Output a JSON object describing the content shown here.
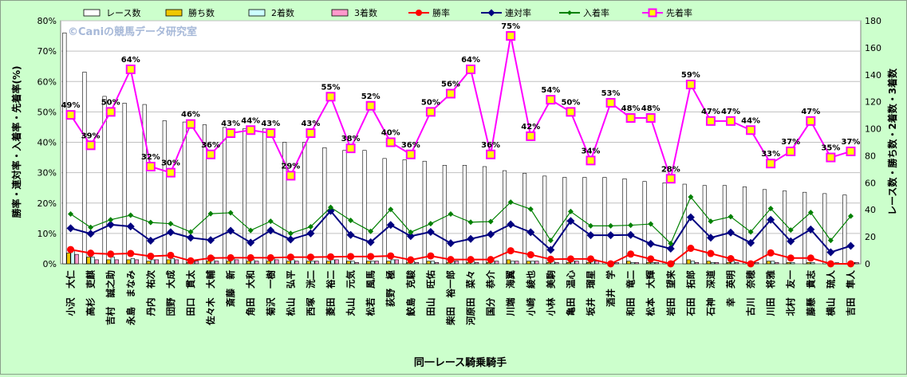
{
  "chart_data": {
    "type": "bar+line",
    "watermark": "©Caniの競馬データ研究室",
    "xlabel": "同一レース騎乗騎手",
    "ylabel_left": "勝率・連対率・入着率・先着率(%)",
    "ylabel_right": "レース数・勝ち数・2着数・3着数",
    "ylim_left": [
      0,
      80
    ],
    "ylim_right": [
      0,
      180
    ],
    "left_ticks": [
      "0%",
      "10%",
      "20%",
      "30%",
      "40%",
      "50%",
      "60%",
      "70%",
      "80%"
    ],
    "right_ticks": [
      "0",
      "20",
      "40",
      "60",
      "80",
      "100",
      "120",
      "140",
      "160",
      "180"
    ],
    "legend": [
      "レース数",
      "勝ち数",
      "2着数",
      "3着数",
      "勝率",
      "連対率",
      "入着率",
      "先着率"
    ],
    "categories": [
      "小沢 大仁",
      "高杉 吏麒",
      "吉村 誠之助",
      "永島 まなみ",
      "丹内 祐次",
      "団野 大成",
      "田口 貫太",
      "佐々木 大輔",
      "斎藤 新",
      "角田 大和",
      "菊沢 一樹",
      "松山 弘平",
      "西塚 洸二",
      "菱田 裕二",
      "丸山 元気",
      "松若 風馬",
      "荻野 極",
      "鮫島 克駿",
      "田山 旺佑",
      "柴田 裕一郎",
      "河原田 菜々",
      "国分 恭介",
      "川端 海翼",
      "小崎 綾也",
      "小林 美駒",
      "亀田 温心",
      "坂井 瑠星",
      "酒井 学",
      "和田 竜二",
      "松本 大輝",
      "岩田 望来",
      "石田 拓郎",
      "石神 深道",
      "幸 英明",
      "古川 奈穂",
      "川田 将雅",
      "北村 友一",
      "藤懸 貴志",
      "横山 琉人",
      "吉田 隼人"
    ],
    "series": [
      {
        "name": "レース数",
        "axis": "right",
        "kind": "bar",
        "values": [
          171,
          142,
          124,
          119,
          118,
          106,
          105,
          103,
          101,
          100,
          100,
          90,
          90,
          86,
          84,
          84,
          78,
          77,
          76,
          73,
          73,
          72,
          69,
          67,
          65,
          64,
          64,
          64,
          63,
          61,
          60,
          59,
          58,
          58,
          57,
          55,
          54,
          53,
          52,
          51
        ]
      },
      {
        "name": "勝ち数",
        "axis": "right",
        "kind": "bar",
        "values": [
          8,
          5,
          3,
          3,
          2,
          3,
          1,
          2,
          2,
          2,
          2,
          2,
          2,
          2,
          2,
          2,
          2,
          1,
          2,
          1,
          1,
          1,
          3,
          2,
          1,
          1,
          1,
          0,
          2,
          1,
          0,
          3,
          2,
          1,
          0,
          2,
          1,
          1,
          0,
          0
        ]
      },
      {
        "name": "2着数",
        "axis": "right",
        "kind": "bar",
        "values": [
          10,
          5,
          5,
          4,
          3,
          4,
          2,
          5,
          4,
          3,
          4,
          3,
          2,
          3,
          2,
          2,
          3,
          2,
          2,
          2,
          2,
          2,
          2,
          2,
          2,
          2,
          2,
          1,
          1,
          1,
          2,
          2,
          1,
          2,
          1,
          2,
          1,
          1,
          0,
          1
        ]
      },
      {
        "name": "3着数",
        "axis": "right",
        "kind": "bar",
        "values": [
          7,
          3,
          3,
          3,
          3,
          3,
          2,
          2,
          3,
          2,
          3,
          2,
          2,
          3,
          1,
          2,
          3,
          1,
          1,
          2,
          1,
          2,
          2,
          2,
          1,
          2,
          2,
          1,
          1,
          1,
          0,
          1,
          1,
          1,
          1,
          1,
          0,
          0,
          1,
          1
        ]
      },
      {
        "name": "勝率",
        "axis": "left",
        "kind": "line",
        "values": [
          4.7,
          3.5,
          3.2,
          3.4,
          2.5,
          2.8,
          1.0,
          1.9,
          2.0,
          2.0,
          2.0,
          2.2,
          2.2,
          2.3,
          2.4,
          2.4,
          2.6,
          1.3,
          2.6,
          1.4,
          1.4,
          1.4,
          4.3,
          3.0,
          1.5,
          1.6,
          1.6,
          0.0,
          3.2,
          1.6,
          0.0,
          5.1,
          3.4,
          1.7,
          0.0,
          3.6,
          1.9,
          1.9,
          0.0,
          0.0
        ]
      },
      {
        "name": "連対率",
        "axis": "left",
        "kind": "line",
        "values": [
          11.7,
          9.9,
          12.9,
          12.3,
          7.6,
          10.4,
          8.6,
          7.8,
          10.9,
          7.0,
          11.0,
          8.0,
          10.0,
          17.4,
          9.5,
          7.1,
          12.8,
          9.1,
          10.5,
          6.8,
          8.2,
          9.7,
          13.0,
          10.4,
          4.6,
          14.1,
          9.4,
          9.4,
          9.5,
          6.6,
          5.0,
          15.3,
          8.6,
          10.3,
          6.9,
          14.5,
          7.4,
          11.3,
          3.8,
          5.9
        ]
      },
      {
        "name": "入着率",
        "axis": "left",
        "kind": "line",
        "values": [
          16.4,
          12.0,
          14.5,
          16.0,
          13.6,
          13.2,
          10.5,
          16.5,
          16.8,
          11.0,
          14.0,
          10.0,
          12.2,
          18.6,
          14.3,
          10.7,
          17.9,
          10.4,
          13.2,
          16.4,
          13.7,
          13.9,
          20.3,
          18.0,
          7.7,
          17.2,
          12.5,
          12.5,
          12.7,
          13.1,
          6.7,
          22.0,
          14.0,
          15.5,
          10.5,
          18.2,
          11.1,
          16.9,
          7.7,
          15.7
        ]
      },
      {
        "name": "先着率",
        "axis": "left",
        "kind": "line",
        "values": [
          49,
          39,
          50,
          64,
          32,
          30,
          46,
          36,
          43,
          44,
          43,
          29,
          43,
          55,
          38,
          52,
          40,
          36,
          50,
          56,
          64,
          36,
          75,
          42,
          54,
          50,
          34,
          53,
          48,
          48,
          28,
          59,
          47,
          47,
          44,
          33,
          37,
          47,
          35,
          37
        ]
      }
    ],
    "point_labels": [
      "49%",
      "39%",
      "50%",
      "64%",
      "32%",
      "30%",
      "46%",
      "36%",
      "43%",
      "44%",
      "43%",
      "29%",
      "43%",
      "55%",
      "38%",
      "52%",
      "40%",
      "36%",
      "50%",
      "56%",
      "64%",
      "36%",
      "75%",
      "42%",
      "54%",
      "50%",
      "34%",
      "53%",
      "48%",
      "48%",
      "28%",
      "59%",
      "47%",
      "47%",
      "44%",
      "33%",
      "37%",
      "47%",
      "35%",
      "37%"
    ],
    "colors": {
      "bg": "#ccffcc",
      "plot": "#ffffff",
      "races_fill": "#ffffff",
      "races_edge": "#000000",
      "wins": "#f0c800",
      "second": "#ccffff",
      "third": "#ff99cc",
      "win_rate": "#ff0000",
      "ren_rate": "#000080",
      "place_rate": "#008000",
      "first_rate": "#ff00ff",
      "watermark": "#a6b8d8"
    }
  }
}
